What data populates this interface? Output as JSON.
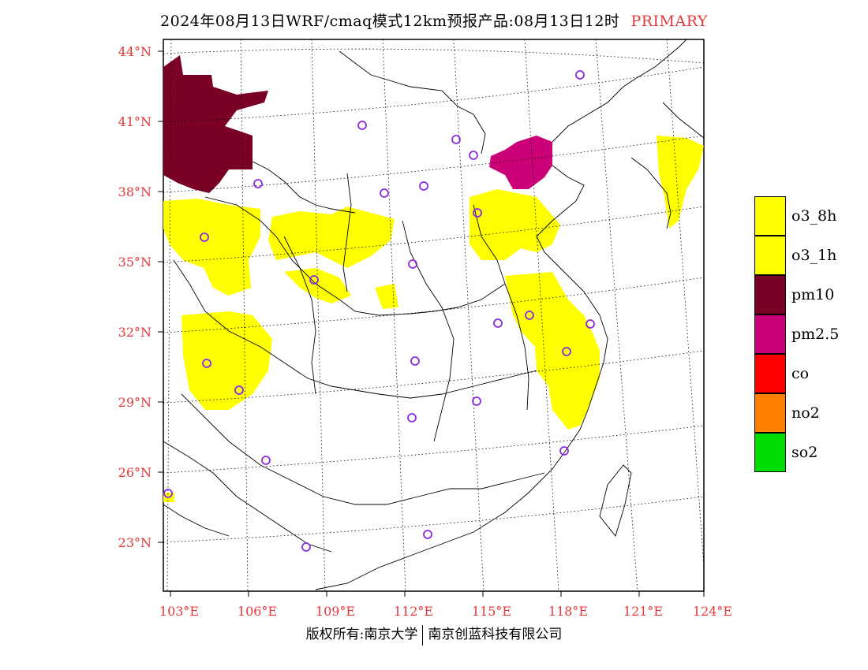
{
  "title": {
    "main": "2024年08月13日WRF/cmaq模式12km预报产品:08月13日12时",
    "tag": "PRIMARY"
  },
  "axes": {
    "lat_labels": [
      "44°N",
      "41°N",
      "38°N",
      "35°N",
      "32°N",
      "29°N",
      "26°N",
      "23°N"
    ],
    "lon_labels": [
      "103°E",
      "106°E",
      "109°E",
      "112°E",
      "115°E",
      "118°E",
      "121°E",
      "124°E"
    ]
  },
  "legend": [
    {
      "label": "o3_8h",
      "color": "#ffff00"
    },
    {
      "label": "o3_1h",
      "color": "#ffff00"
    },
    {
      "label": "pm10",
      "color": "#7a0026"
    },
    {
      "label": "pm2.5",
      "color": "#cc0077"
    },
    {
      "label": "co",
      "color": "#ff0000"
    },
    {
      "label": "no2",
      "color": "#ff7f00"
    },
    {
      "label": "so2",
      "color": "#00dd00"
    }
  ],
  "footer": {
    "left": "版权所有:南京大学",
    "right": "南京创蓝科技有限公司"
  }
}
